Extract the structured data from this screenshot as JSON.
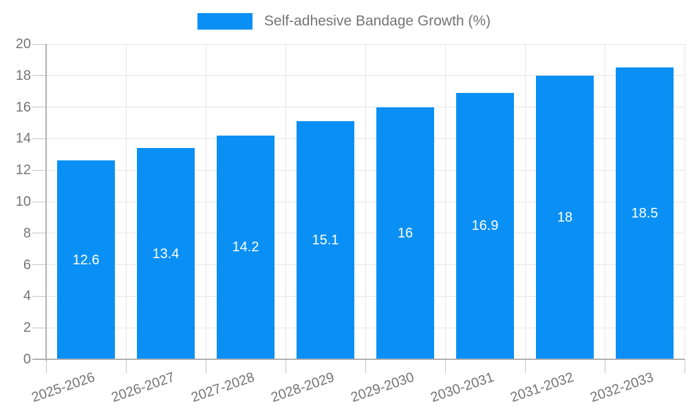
{
  "chart_data": {
    "type": "bar",
    "title": "",
    "legend": "Self-adhesive Bandage Growth (%)",
    "legend_position": "top",
    "categories": [
      "2025-2026",
      "2026-2027",
      "2027-2028",
      "2028-2029",
      "2029-2030",
      "2030-2031",
      "2031-2032",
      "2032-2033"
    ],
    "values": [
      12.6,
      13.4,
      14.2,
      15.1,
      16,
      16.9,
      18,
      18.5
    ],
    "value_labels": [
      "12.6",
      "13.4",
      "14.2",
      "15.1",
      "16",
      "16.9",
      "18",
      "18.5"
    ],
    "xlabel": "",
    "ylabel": "",
    "ylim": [
      0,
      20
    ],
    "ytick_step": 2,
    "yticks": [
      0,
      2,
      4,
      6,
      8,
      10,
      12,
      14,
      16,
      18,
      20
    ],
    "grid": true,
    "x_label_rotation_deg": -19
  },
  "colors": {
    "bar": "#0a90f5",
    "grid": "#e6e6e6",
    "axis": "#b0b0b0",
    "tick": "#c4c4c4",
    "text": "#757575",
    "value_label": "#ffffff",
    "background": "#ffffff"
  }
}
